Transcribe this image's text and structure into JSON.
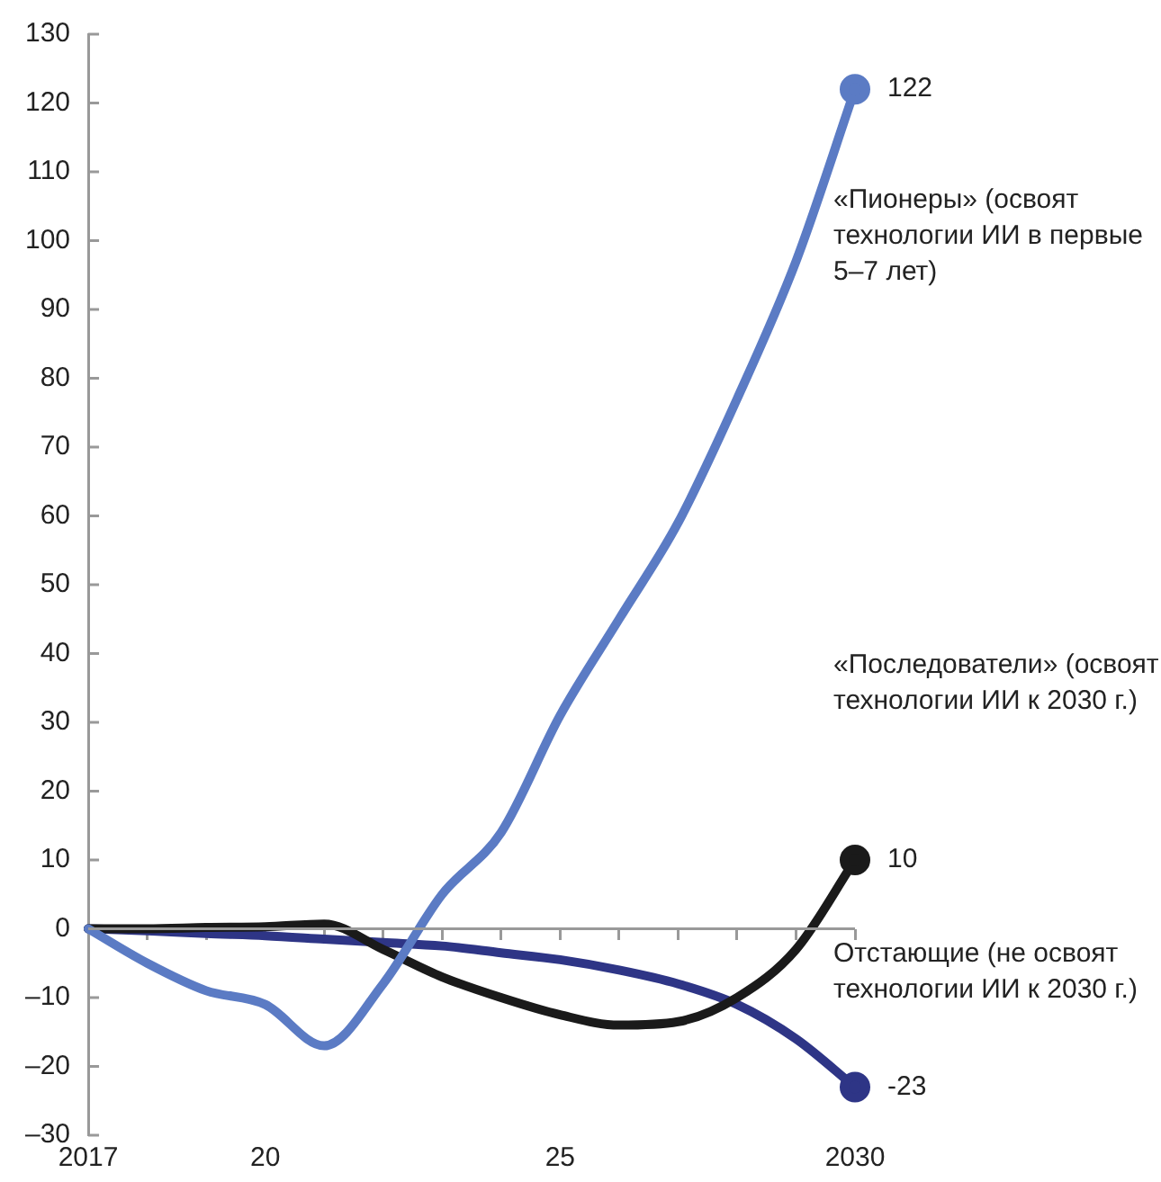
{
  "chart_data": {
    "type": "line",
    "x": [
      2017,
      2018,
      2019,
      2020,
      2021,
      2022,
      2023,
      2024,
      2025,
      2026,
      2027,
      2028,
      2029,
      2030
    ],
    "xlim": [
      2017,
      2030
    ],
    "xticks": [
      2017,
      {
        "value": 2018,
        "label": null
      },
      {
        "value": 2019,
        "label": null
      },
      {
        "value": 2020,
        "label": "20"
      },
      {
        "value": 2021,
        "label": null
      },
      {
        "value": 2022,
        "label": null
      },
      {
        "value": 2023,
        "label": null
      },
      {
        "value": 2024,
        "label": null
      },
      {
        "value": 2025,
        "label": "25"
      },
      {
        "value": 2026,
        "label": null
      },
      {
        "value": 2027,
        "label": null
      },
      {
        "value": 2028,
        "label": null
      },
      {
        "value": 2029,
        "label": null
      },
      2030
    ],
    "ylim": [
      -30,
      130
    ],
    "yticks": [
      {
        "value": -30,
        "label": "–30"
      },
      {
        "value": -20,
        "label": "–20"
      },
      {
        "value": -10,
        "label": "–10"
      },
      0,
      10,
      20,
      30,
      40,
      50,
      60,
      70,
      80,
      90,
      100,
      110,
      120,
      130
    ],
    "grid": false,
    "legend": false,
    "ref_lines": [
      {
        "axis": "y",
        "value": 0,
        "color": "#999999"
      }
    ],
    "series": [
      {
        "name": "«Пионеры» (освоят технологии ИИ в первые 5–7 лет)",
        "color": "#5b7bc4",
        "values": [
          0,
          -5,
          -9,
          -11,
          -17,
          -8,
          5,
          14,
          31,
          45,
          59,
          77,
          97,
          122
        ],
        "value_labels": [
          null,
          null,
          null,
          null,
          null,
          null,
          null,
          null,
          null,
          null,
          null,
          null,
          null,
          "122"
        ]
      },
      {
        "name": "«Последователи» (освоят технологии ИИ к 2030 г.)",
        "color": "#1a1a1a",
        "values": [
          0,
          0,
          0.2,
          0.3,
          0.7,
          -3,
          -7,
          -10,
          -12.5,
          -14,
          -13.5,
          -10,
          -3,
          10
        ],
        "value_labels": [
          null,
          null,
          null,
          null,
          null,
          null,
          null,
          null,
          null,
          null,
          null,
          null,
          null,
          "10"
        ]
      },
      {
        "name": "Отстающие (не освоят технологии ИИ к 2030 г.)",
        "color": "#2e3586",
        "values": [
          0,
          -0.3,
          -0.7,
          -1,
          -1.5,
          -2,
          -2.5,
          -3.5,
          -4.5,
          -6,
          -8,
          -11,
          -16,
          -23
        ],
        "value_labels": [
          null,
          null,
          null,
          null,
          null,
          null,
          null,
          null,
          null,
          null,
          null,
          null,
          null,
          "-23"
        ]
      }
    ]
  }
}
